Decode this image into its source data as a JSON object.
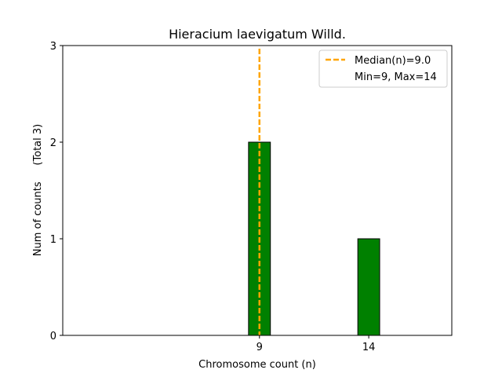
{
  "chart_data": {
    "type": "bar",
    "title": "Hieracium laevigatum Willd.",
    "xlabel": "Chromosome count (n)",
    "ylabel": "Num of counts     (Total 3)",
    "categories": [
      "9",
      "14"
    ],
    "x": [
      9,
      14
    ],
    "values": [
      2,
      1
    ],
    "xlim": [
      0,
      17.8
    ],
    "ylim": [
      0,
      3
    ],
    "yticks": [
      "0",
      "1",
      "2",
      "3"
    ],
    "grid": false,
    "legend_placement": "top-right",
    "legend": [
      {
        "label": "Median(n)=9.0",
        "style": "dashed-line"
      },
      {
        "label": "Min=9, Max=14",
        "style": "none"
      }
    ],
    "median": 9.0,
    "colors": {
      "bar_fill": "#008000",
      "bar_edge": "#000000",
      "median_line": "#FFA500"
    }
  }
}
